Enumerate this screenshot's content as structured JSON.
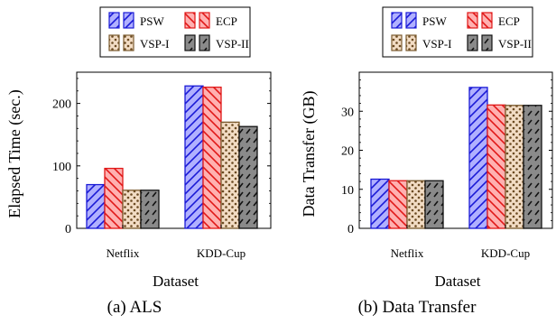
{
  "figure": {
    "caption_a": "(a)  ALS",
    "caption_b": "(b) Data Transfer"
  },
  "colors": {
    "PSW": {
      "fill": "#b0b0ff",
      "stroke": "#1a1ad6"
    },
    "ECP": {
      "fill": "#ffb0b0",
      "stroke": "#e01818"
    },
    "VSP-I": {
      "fill": "#f2dcc4",
      "stroke": "#7a5a2e"
    },
    "VSP-II": {
      "fill": "#8a8a8a",
      "stroke": "#111111"
    }
  },
  "chart_data": [
    {
      "type": "bar",
      "title": "",
      "xlabel": "Dataset",
      "ylabel": "Elapsed Time (sec.)",
      "categories": [
        "Netflix",
        "KDD-Cup"
      ],
      "ylim": [
        0,
        250
      ],
      "yticks": [
        0,
        100,
        200
      ],
      "legend_position": "top",
      "series": [
        {
          "name": "PSW",
          "pattern": "stripes",
          "values": [
            70,
            228
          ]
        },
        {
          "name": "ECP",
          "pattern": "backslash",
          "values": [
            96,
            226
          ]
        },
        {
          "name": "VSP-I",
          "pattern": "dots",
          "values": [
            61,
            170
          ]
        },
        {
          "name": "VSP-II",
          "pattern": "dashes",
          "values": [
            61,
            163
          ]
        }
      ]
    },
    {
      "type": "bar",
      "title": "",
      "xlabel": "Dataset",
      "ylabel": "Data Transfer (GB)",
      "categories": [
        "Netflix",
        "KDD-Cup"
      ],
      "ylim": [
        0,
        40
      ],
      "yticks": [
        0,
        10,
        20,
        30
      ],
      "legend_position": "top",
      "series": [
        {
          "name": "PSW",
          "pattern": "stripes",
          "values": [
            12.6,
            36.1
          ]
        },
        {
          "name": "ECP",
          "pattern": "backslash",
          "values": [
            12.2,
            31.6
          ]
        },
        {
          "name": "VSP-I",
          "pattern": "dots",
          "values": [
            12.2,
            31.5
          ]
        },
        {
          "name": "VSP-II",
          "pattern": "dashes",
          "values": [
            12.2,
            31.5
          ]
        }
      ]
    }
  ]
}
